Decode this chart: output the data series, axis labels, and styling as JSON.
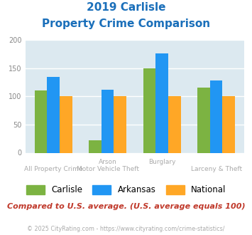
{
  "title_line1": "2019 Carlisle",
  "title_line2": "Property Crime Comparison",
  "title_color": "#1a6fba",
  "carlisle": [
    110,
    22,
    149,
    116
  ],
  "arkansas": [
    135,
    112,
    176,
    128
  ],
  "national": [
    100,
    100,
    100,
    100
  ],
  "carlisle_color": "#7cb342",
  "arkansas_color": "#2196f3",
  "national_color": "#ffa726",
  "ylim": [
    0,
    200
  ],
  "yticks": [
    0,
    50,
    100,
    150,
    200
  ],
  "background_color": "#dce9f0",
  "grid_color": "#ffffff",
  "xlabel_top": [
    "",
    "Arson",
    "Burglary",
    ""
  ],
  "xlabel_bottom": [
    "All Property Crime",
    "Motor Vehicle Theft",
    "",
    "Larceny & Theft"
  ],
  "xlabel_color": "#aaaaaa",
  "note": "Compared to U.S. average. (U.S. average equals 100)",
  "note_color": "#c0392b",
  "footer": "© 2025 CityRating.com - https://www.cityrating.com/crime-statistics/",
  "footer_color": "#aaaaaa",
  "legend_labels": [
    "Carlisle",
    "Arkansas",
    "National"
  ],
  "bar_width": 0.23
}
